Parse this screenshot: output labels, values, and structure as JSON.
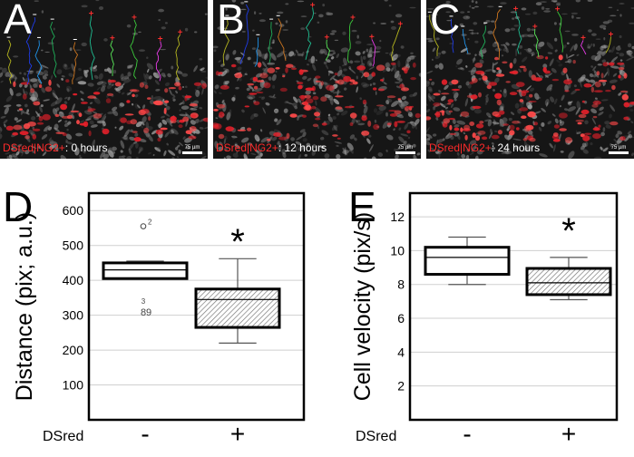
{
  "panels": [
    {
      "letter": "A",
      "caption_red": "DSred|NG2+",
      "caption_rest": ": 0 hours",
      "scale_label": "75 µm"
    },
    {
      "letter": "B",
      "caption_red": "DSred|NG2+",
      "caption_rest": ": 12 hours",
      "scale_label": "75 µm"
    },
    {
      "letter": "C",
      "caption_red": "DSred|NG2+",
      "caption_rest": ": 24 hours",
      "scale_label": "75 µm"
    }
  ],
  "chart_data": [
    {
      "type": "box",
      "panel": "D",
      "ylabel": "Distance (pix; a.u.)",
      "xlabel": "DSred",
      "categories": [
        "-",
        "+"
      ],
      "ylim": [
        0,
        650
      ],
      "yticks": [
        100,
        200,
        300,
        400,
        500,
        600
      ],
      "grid": true,
      "boxes": [
        {
          "min": 405,
          "q1": 405,
          "median": 430,
          "q3": 450,
          "max": 455
        },
        {
          "min": 220,
          "q1": 265,
          "median": 345,
          "q3": 375,
          "max": 462
        }
      ],
      "outliers": [
        {
          "category": "-",
          "value": 555,
          "label": "2"
        },
        {
          "category": "-",
          "value": 312,
          "label": "8"
        },
        {
          "category": "-",
          "value": 312,
          "label": "9"
        },
        {
          "category": "-",
          "value": 322,
          "label": "3"
        }
      ],
      "significance": {
        "category": "+",
        "symbol": "*"
      }
    },
    {
      "type": "box",
      "panel": "E",
      "ylabel": "Cell velocity (pix/s)",
      "xlabel": "DSred",
      "categories": [
        "-",
        "+"
      ],
      "ylim": [
        0,
        13.4
      ],
      "yticks": [
        2,
        4,
        6,
        8,
        10,
        12
      ],
      "grid": true,
      "boxes": [
        {
          "min": 8.0,
          "q1": 8.6,
          "median": 9.6,
          "q3": 10.2,
          "max": 10.8
        },
        {
          "min": 7.1,
          "q1": 7.4,
          "median": 8.1,
          "q3": 8.95,
          "max": 9.6
        }
      ],
      "significance": {
        "category": "+",
        "symbol": "*"
      }
    }
  ]
}
